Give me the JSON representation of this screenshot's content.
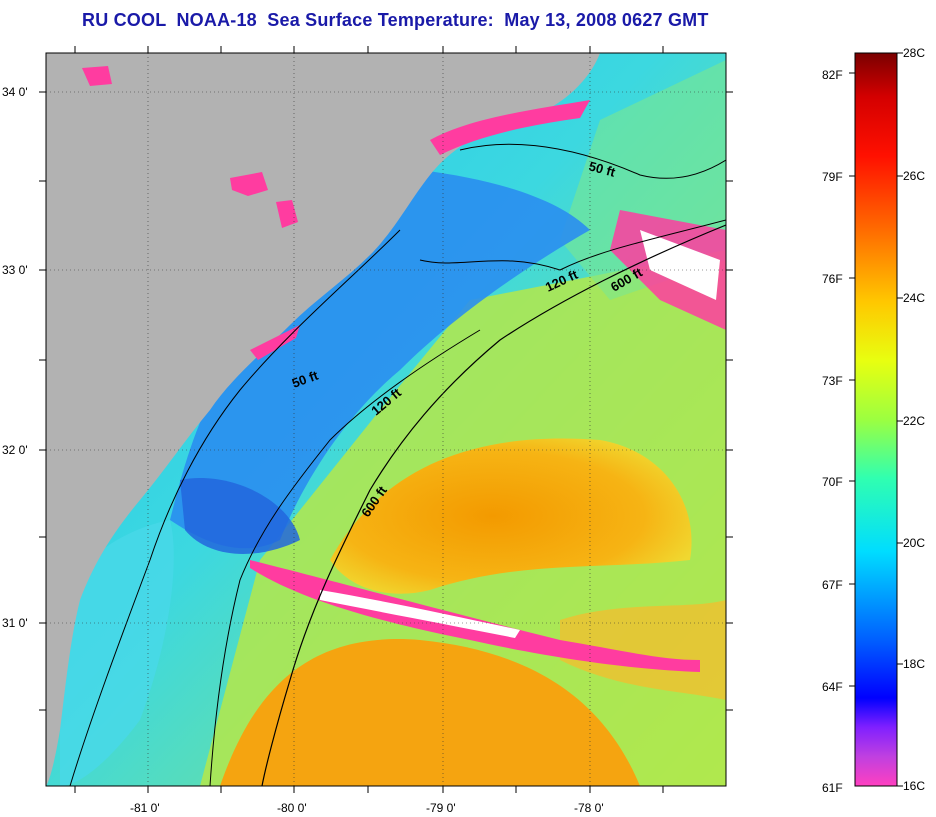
{
  "title": "RU COOL  NOAA-18  Sea Surface Temperature:  May 13, 2008 0627 GMT",
  "map": {
    "longitude_labels": [
      "-81 0'",
      "-80 0'",
      "-79 0'",
      "-78 0'"
    ],
    "latitude_labels": [
      "34 0'",
      "33 0'",
      "32 0'",
      "31 0'"
    ],
    "contours": [
      {
        "name": "50-ft",
        "label": "50 ft"
      },
      {
        "name": "120-ft",
        "label": "120 ft"
      },
      {
        "name": "600-ft",
        "label": "600 ft"
      }
    ],
    "contour_label_text": {
      "label_50_a": "50 ft",
      "label_50_b": "50 ft",
      "label_120_a": "120 ft",
      "label_120_b": "120 ft",
      "label_600_a": "600 ft",
      "label_600_b": "600 ft"
    },
    "colors": {
      "land": "#b2b2b2",
      "cloud_mask": "#ff3ca0",
      "cold_water": "#1e7ff0",
      "cool_water": "#22c8f0",
      "mild_water": "#9af060",
      "warm_water": "#f5a000"
    }
  },
  "colorbar": {
    "fahrenheit_labels": [
      "82F",
      "79F",
      "76F",
      "73F",
      "70F",
      "67F",
      "64F",
      "61F"
    ],
    "celsius_labels": [
      "28C",
      "26C",
      "24C",
      "22C",
      "20C",
      "18C",
      "16C"
    ],
    "gradient_stops": [
      "#7a0000",
      "#ff0000",
      "#ff6a00",
      "#ffc800",
      "#ffff00",
      "#9cff40",
      "#00ffff",
      "#0080ff",
      "#0000ff",
      "#8000ff",
      "#ff40c0"
    ]
  }
}
